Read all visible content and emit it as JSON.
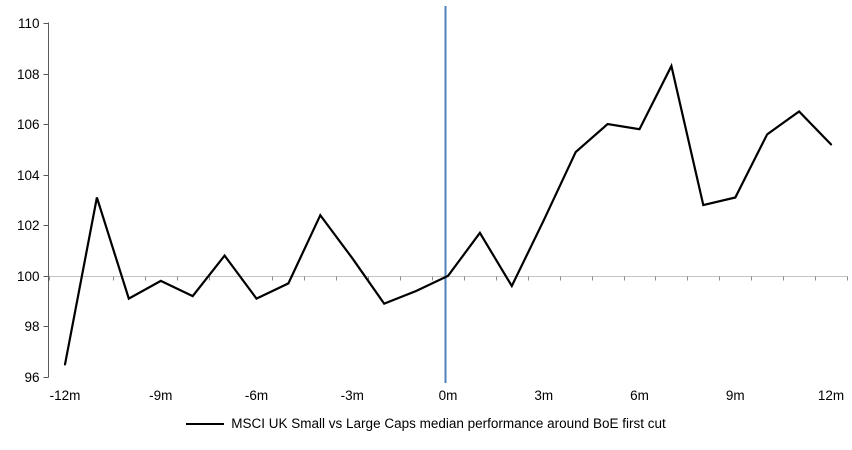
{
  "chart_data": {
    "type": "line",
    "title": "",
    "xlabel": "",
    "ylabel": "",
    "x_unit": "months relative to BoE first rate cut",
    "x": [
      -12,
      -11,
      -10,
      -9,
      -8,
      -7,
      -6,
      -5,
      -4,
      -3,
      -2,
      -1,
      0,
      1,
      2,
      3,
      4,
      5,
      6,
      7,
      8,
      9,
      10,
      11,
      12
    ],
    "series": [
      {
        "name": "MSCI UK Small vs Large Caps median performance around BoE first cut",
        "color": "#000000",
        "values": [
          96.5,
          103.1,
          99.1,
          99.8,
          99.2,
          100.8,
          99.1,
          99.7,
          102.4,
          100.7,
          98.9,
          99.4,
          100.0,
          101.7,
          99.6,
          102.2,
          104.9,
          106.0,
          105.8,
          108.3,
          102.8,
          103.1,
          105.6,
          106.5,
          105.2
        ]
      }
    ],
    "ylim": [
      96,
      110
    ],
    "y_ticks": [
      96,
      98,
      100,
      102,
      104,
      106,
      108,
      110
    ],
    "x_ticks": [
      -12,
      -9,
      -6,
      -3,
      0,
      3,
      6,
      9,
      12
    ],
    "x_tick_labels": [
      "-12m",
      "-9m",
      "-6m",
      "-3m",
      "0m",
      "3m",
      "6m",
      "9m",
      "12m"
    ],
    "baseline": 100,
    "event_line_x": 0,
    "grid": "single horizontal axis line at 100 with month tick marks",
    "legend_position": "bottom"
  },
  "legend": {
    "items": [
      {
        "label": "MSCI UK Small vs Large Caps median performance around BoE first cut",
        "color": "#000000",
        "marker": "line"
      }
    ]
  },
  "colors": {
    "background": "#FFFFFF",
    "series_line": "#000000",
    "event_line": "#4F81BD",
    "value_axis": "#595959",
    "category_axis": "#C4C4C4",
    "tick": "#8C8C8C",
    "label_text": "#000000"
  }
}
